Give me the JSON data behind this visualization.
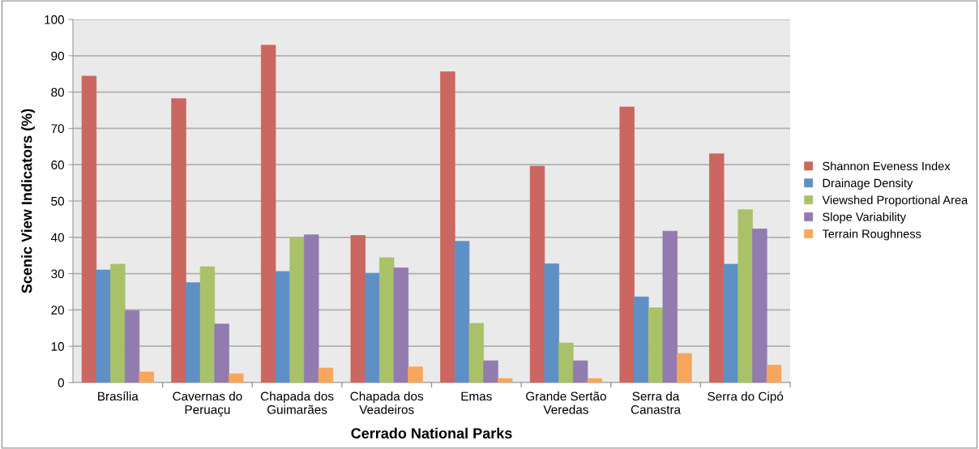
{
  "chart_data": {
    "type": "bar",
    "xlabel": "Cerrado National Parks",
    "ylabel": "Scenic View Indicators (%)",
    "categories": [
      "Brasília",
      "Cavernas do\nPeruaçu",
      "Chapada dos\nGuimarães",
      "Chapada dos\nVeadeiros",
      "Emas",
      "Grande Sertão\nVeredas",
      "Serra da\nCanastra",
      "Serra do Cipó"
    ],
    "series": [
      {
        "name": "Shannon Eveness Index",
        "color": "#cb6660",
        "values": [
          84.4,
          78.2,
          92.9,
          40.5,
          85.6,
          59.6,
          75.9,
          63.0
        ]
      },
      {
        "name": "Drainage Density",
        "color": "#5e90c5",
        "values": [
          31.0,
          27.5,
          30.6,
          30.1,
          38.9,
          32.7,
          23.6,
          32.6
        ]
      },
      {
        "name": "Viewshed Proportional Area",
        "color": "#a9c268",
        "values": [
          32.6,
          31.9,
          39.9,
          34.4,
          16.3,
          10.9,
          20.6,
          47.6
        ]
      },
      {
        "name": "Slope Variability",
        "color": "#917baf",
        "values": [
          19.8,
          16.1,
          40.7,
          31.6,
          6.0,
          6.0,
          41.7,
          42.3
        ]
      },
      {
        "name": "Terrain Roughness",
        "color": "#f7a65a",
        "values": [
          2.9,
          2.4,
          4.0,
          4.3,
          1.1,
          1.1,
          8.0,
          4.8
        ]
      }
    ],
    "ylim": [
      0,
      100
    ],
    "yticks": [
      0,
      10,
      20,
      30,
      40,
      50,
      60,
      70,
      80,
      90,
      100
    ],
    "grid": "y",
    "legend": "right"
  }
}
